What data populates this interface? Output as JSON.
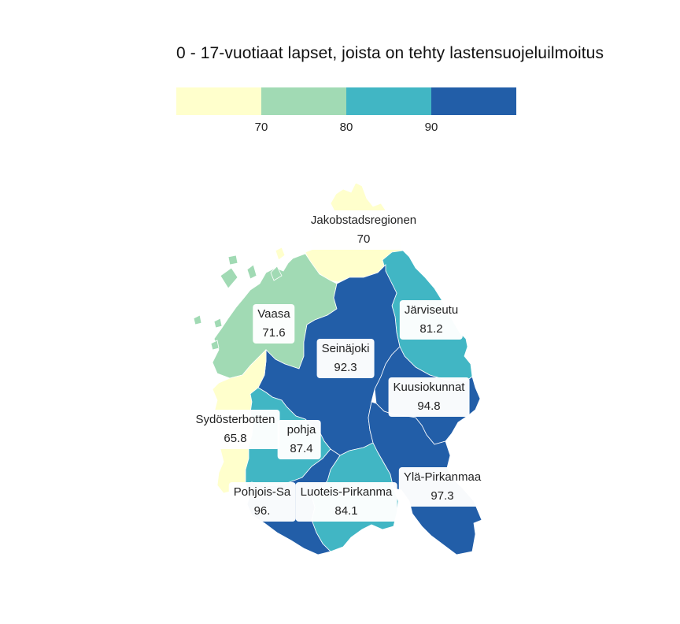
{
  "title": "0 - 17-vuotiaat lapset, joista on tehty lastensuojeluilmoitus",
  "legend": {
    "colors": [
      "#ffffcc",
      "#a1dab4",
      "#41b6c4",
      "#225ea8"
    ],
    "ticks": [
      "70",
      "80",
      "90"
    ]
  },
  "regions": [
    {
      "key": "jakobstad",
      "name": "Jakobstadsregionen",
      "value": "70",
      "color": "#ffffcc"
    },
    {
      "key": "vaasa",
      "name": "Vaasa",
      "value": "71.6",
      "color": "#a1dab4"
    },
    {
      "key": "jarviseutu",
      "name": "Järviseutu",
      "value": "81.2",
      "color": "#41b6c4"
    },
    {
      "key": "seinajoki",
      "name": "Seinäjoki",
      "value": "92.3",
      "color": "#225ea8"
    },
    {
      "key": "kuusiokunnat",
      "name": "Kuusiokunnat",
      "value": "94.8",
      "color": "#225ea8"
    },
    {
      "key": "sydosterbotten",
      "name": "Sydösterbotten",
      "value": "65.8",
      "color": "#ffffcc"
    },
    {
      "key": "suupohja",
      "name": "pohja",
      "value": "87.4",
      "color": "#41b6c4"
    },
    {
      "key": "yla_pirkanmaa",
      "name": "Ylä-Pirkanmaa",
      "value": "97.3",
      "color": "#225ea8"
    },
    {
      "key": "pohjois_sat",
      "name": "Pohjois-Sa",
      "value": "96.",
      "color": "#225ea8"
    },
    {
      "key": "luoteis_pirkanmaa",
      "name": "Luoteis-Pirkanma",
      "value": "84.1",
      "color": "#41b6c4"
    }
  ]
}
